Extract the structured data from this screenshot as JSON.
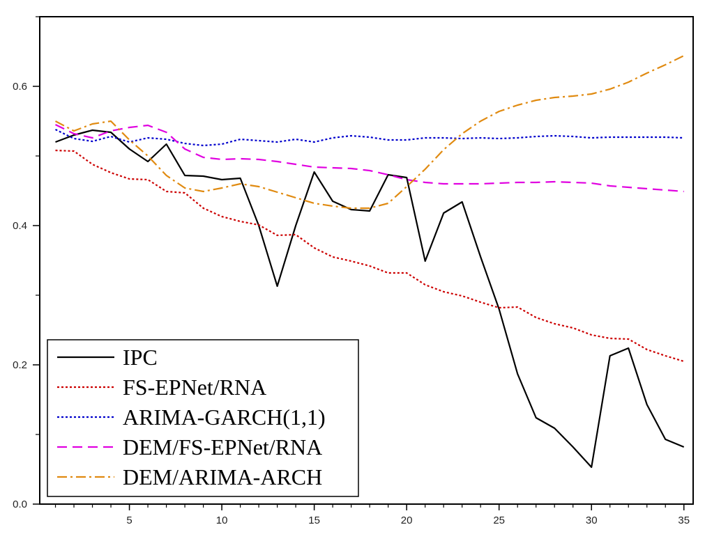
{
  "chart_data": {
    "type": "line",
    "title": "",
    "xlabel": "",
    "ylabel": "",
    "xlim": [
      1,
      35
    ],
    "ylim": [
      0,
      0.7
    ],
    "x_ticks": [
      5,
      10,
      15,
      20,
      25,
      30,
      35
    ],
    "x_tick_labels": [
      "5",
      "10",
      "15",
      "20",
      "25",
      "30",
      "35"
    ],
    "x_minor_ticks": [
      1,
      2,
      3,
      4,
      5,
      6,
      7,
      8,
      9,
      10,
      11,
      12,
      13,
      14,
      15,
      16,
      17,
      18,
      19,
      20,
      21,
      22,
      23,
      24,
      25,
      26,
      27,
      28,
      29,
      30,
      31,
      32,
      33,
      34,
      35
    ],
    "y_ticks": [
      0,
      0.2,
      0.4,
      0.6
    ],
    "y_tick_labels": [
      "0.0",
      "0.2",
      "0.4",
      "0.6"
    ],
    "y_minor_ticks": [
      0.1,
      0.3,
      0.5,
      0.7
    ],
    "grid": false,
    "legend_position": "bottom-left",
    "x": [
      1,
      2,
      3,
      4,
      5,
      6,
      7,
      8,
      9,
      10,
      11,
      12,
      13,
      14,
      15,
      16,
      17,
      18,
      19,
      20,
      21,
      22,
      23,
      24,
      25,
      26,
      27,
      28,
      29,
      30,
      31,
      32,
      33,
      34,
      35
    ],
    "series": [
      {
        "name": "IPC",
        "color": "#000000",
        "dash": "solid",
        "values": [
          0.52,
          0.53,
          0.537,
          0.534,
          0.51,
          0.492,
          0.517,
          0.472,
          0.471,
          0.466,
          0.468,
          0.4,
          0.313,
          0.4,
          0.477,
          0.435,
          0.423,
          0.421,
          0.473,
          0.469,
          0.349,
          0.418,
          0.434,
          0.355,
          0.28,
          0.187,
          0.124,
          0.109,
          0.082,
          0.053,
          0.213,
          0.224,
          0.143,
          0.093,
          0.082
        ]
      },
      {
        "name": "FS-EPNet/RNA",
        "color": "#cc0000",
        "dash": "dotted",
        "values": [
          0.508,
          0.507,
          0.488,
          0.476,
          0.467,
          0.466,
          0.449,
          0.447,
          0.425,
          0.413,
          0.406,
          0.401,
          0.386,
          0.387,
          0.368,
          0.355,
          0.349,
          0.342,
          0.332,
          0.332,
          0.315,
          0.305,
          0.299,
          0.29,
          0.282,
          0.283,
          0.268,
          0.259,
          0.253,
          0.243,
          0.238,
          0.237,
          0.222,
          0.213,
          0.205
        ]
      },
      {
        "name": "ARIMA-GARCH(1,1)",
        "color": "#0000cc",
        "dash": "dotted",
        "values": [
          0.538,
          0.525,
          0.521,
          0.528,
          0.52,
          0.526,
          0.524,
          0.518,
          0.515,
          0.517,
          0.524,
          0.522,
          0.52,
          0.524,
          0.52,
          0.526,
          0.529,
          0.527,
          0.523,
          0.523,
          0.526,
          0.526,
          0.525,
          0.526,
          0.525,
          0.526,
          0.528,
          0.529,
          0.528,
          0.526,
          0.527,
          0.527,
          0.527,
          0.527,
          0.526
        ]
      },
      {
        "name": "DEM/FS-EPNet/RNA",
        "color": "#e000e0",
        "dash": "dashed",
        "values": [
          0.545,
          0.532,
          0.526,
          0.536,
          0.541,
          0.544,
          0.534,
          0.51,
          0.498,
          0.495,
          0.496,
          0.495,
          0.492,
          0.488,
          0.484,
          0.483,
          0.482,
          0.479,
          0.473,
          0.466,
          0.462,
          0.46,
          0.46,
          0.46,
          0.461,
          0.462,
          0.462,
          0.463,
          0.462,
          0.461,
          0.457,
          0.455,
          0.453,
          0.451,
          0.449
        ]
      },
      {
        "name": "DEM/ARIMA-ARCH",
        "color": "#e08a10",
        "dash": "dashdot",
        "values": [
          0.55,
          0.536,
          0.546,
          0.55,
          0.523,
          0.5,
          0.472,
          0.454,
          0.449,
          0.454,
          0.46,
          0.456,
          0.448,
          0.44,
          0.432,
          0.428,
          0.425,
          0.425,
          0.432,
          0.456,
          0.481,
          0.509,
          0.532,
          0.55,
          0.564,
          0.573,
          0.58,
          0.584,
          0.586,
          0.589,
          0.596,
          0.606,
          0.619,
          0.631,
          0.644
        ]
      }
    ]
  }
}
